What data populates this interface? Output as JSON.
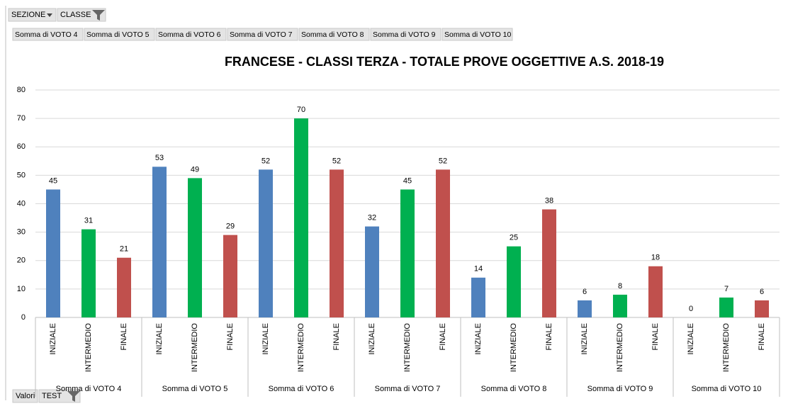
{
  "pivot": {
    "filters": [
      "SEZIONE",
      "CLASSE"
    ],
    "values_button": "Valori",
    "row_button": "TEST"
  },
  "chart_data": {
    "type": "bar",
    "title": "FRANCESE - CLASSI TERZA - TOTALE PROVE OGGETTIVE A.S. 2018-19",
    "categories": [
      "Somma di VOTO 4",
      "Somma di VOTO 5",
      "Somma di VOTO 6",
      "Somma di VOTO 7",
      "Somma di VOTO 8",
      "Somma di VOTO 9",
      "Somma di VOTO 10"
    ],
    "series": [
      {
        "name": "INIZIALE",
        "color": "#4f81bd",
        "values": [
          45,
          53,
          52,
          32,
          14,
          6,
          0
        ]
      },
      {
        "name": "INTERMEDIO",
        "color": "#00b050",
        "values": [
          31,
          49,
          70,
          45,
          25,
          8,
          7
        ]
      },
      {
        "name": "FINALE",
        "color": "#c0504d",
        "values": [
          21,
          29,
          52,
          52,
          38,
          18,
          6
        ]
      }
    ],
    "ylim": [
      0,
      80
    ],
    "yticks": [
      0,
      10,
      20,
      30,
      40,
      50,
      60,
      70,
      80
    ],
    "grid": true
  }
}
